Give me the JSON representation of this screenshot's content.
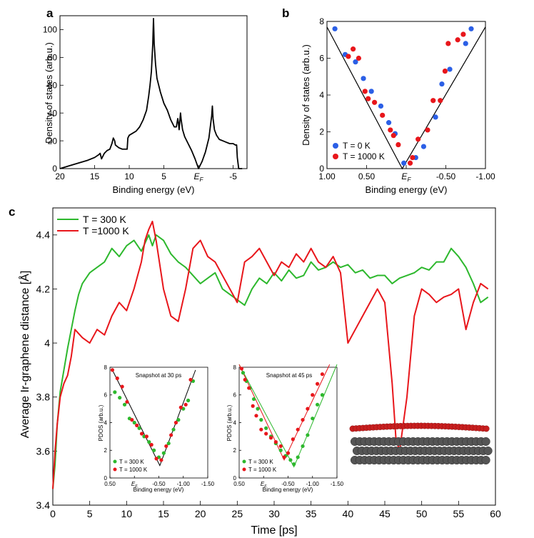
{
  "colors": {
    "green": "#2db82d",
    "red": "#e8161b",
    "blue": "#2b5fe6",
    "black": "#000000",
    "sheet_red": "#c81e1e",
    "sheet_gray": "#555555"
  },
  "chart_data": [
    {
      "id": "a",
      "panel": "a",
      "type": "line",
      "xlabel": "Binding energy (eV)",
      "ylabel": "Density of states (arb.u.)",
      "xlim": [
        20,
        -7
      ],
      "ylim": [
        0,
        110
      ],
      "xticks": [
        {
          "value": 20,
          "label": "20"
        },
        {
          "value": 15,
          "label": "15"
        },
        {
          "value": 10,
          "label": "10"
        },
        {
          "value": 5,
          "label": "5"
        },
        {
          "value": 0,
          "label": "E",
          "sub": "F"
        },
        {
          "value": -5,
          "label": "-5"
        }
      ],
      "yticks": [
        0,
        20,
        40,
        60,
        80,
        100
      ],
      "series": [
        {
          "name": "DOS",
          "color": "#000000",
          "x": [
            20,
            18,
            16,
            15,
            14.4,
            14.2,
            14,
            13.6,
            13.2,
            12.8,
            12.5,
            12.3,
            12.1,
            12,
            11.5,
            11,
            10.3,
            10.2,
            10,
            9,
            8.5,
            8,
            7.5,
            7.2,
            7,
            6.8,
            6.6,
            6.5,
            6.4,
            6.2,
            6,
            5.5,
            5,
            4.5,
            4,
            3.5,
            3.2,
            3,
            2.9,
            2.8,
            2.7,
            2.6,
            2.5,
            2.3,
            2,
            1.5,
            1,
            0.5,
            0,
            -0.5,
            -1,
            -1.5,
            -1.9,
            -2,
            -2.1,
            -2.3,
            -2.6,
            -3,
            -3.5,
            -4,
            -4.5,
            -5,
            -5.3,
            -5.5,
            -5.6,
            -5.8,
            -6,
            -6.3
          ],
          "y": [
            0,
            3,
            6,
            8,
            10,
            11,
            7,
            11,
            13,
            14,
            18,
            22,
            20,
            17,
            15,
            14,
            14,
            22,
            24,
            27,
            30,
            35,
            42,
            52,
            60,
            70,
            90,
            108,
            90,
            75,
            65,
            55,
            47,
            42,
            35,
            30,
            30,
            36,
            33,
            28,
            34,
            40,
            35,
            28,
            23,
            18,
            13,
            7,
            0,
            5,
            12,
            22,
            38,
            45,
            36,
            28,
            24,
            21,
            20,
            19,
            18,
            18,
            17,
            17,
            8,
            0,
            0,
            0
          ]
        }
      ]
    },
    {
      "id": "b",
      "panel": "b",
      "type": "scatter",
      "xlabel": "Binding energy (eV)",
      "ylabel": "Density of states (arb.u.)",
      "xlim": [
        1.0,
        -1.0
      ],
      "ylim": [
        0,
        8
      ],
      "xticks": [
        {
          "value": 1.0,
          "label": "1.00"
        },
        {
          "value": 0.5,
          "label": "0.50"
        },
        {
          "value": 0,
          "label": "E",
          "sub": "F"
        },
        {
          "value": -0.5,
          "label": "-0.50"
        },
        {
          "value": -1.0,
          "label": "-1.00"
        }
      ],
      "yticks": [
        0,
        2,
        4,
        6,
        8
      ],
      "legend": [
        {
          "label": "T = 0 K",
          "color": "#2b5fe6"
        },
        {
          "label": "T = 1000 K",
          "color": "#e8161b"
        }
      ],
      "fit_line": {
        "x": [
          1.0,
          0.05,
          -1.0
        ],
        "y": [
          7.7,
          0,
          7.7
        ]
      },
      "series": [
        {
          "name": "T = 0 K",
          "color": "#2b5fe6",
          "x": [
            0.9,
            0.77,
            0.64,
            0.54,
            0.44,
            0.32,
            0.22,
            0.14,
            0.03,
            -0.12,
            -0.22,
            -0.37,
            -0.45,
            -0.55,
            -0.75,
            -0.82
          ],
          "y": [
            7.6,
            6.2,
            5.8,
            4.9,
            4.2,
            3.4,
            2.5,
            1.9,
            0.3,
            0.6,
            1.2,
            2.8,
            4.6,
            5.4,
            6.8,
            7.6
          ]
        },
        {
          "name": "T = 1000 K",
          "color": "#e8161b",
          "x": [
            0.73,
            0.67,
            0.6,
            0.52,
            0.48,
            0.4,
            0.3,
            0.2,
            0.16,
            0.1,
            -0.05,
            -0.08,
            -0.15,
            -0.27,
            -0.34,
            -0.43,
            -0.49,
            -0.53,
            -0.65,
            -0.72
          ],
          "y": [
            6.1,
            6.5,
            6.0,
            4.2,
            3.8,
            3.6,
            2.9,
            2.1,
            1.8,
            1.3,
            0.3,
            0.6,
            1.6,
            2.1,
            3.7,
            3.7,
            5.3,
            6.8,
            7.0,
            7.3
          ]
        }
      ]
    },
    {
      "id": "c",
      "panel": "c",
      "type": "line",
      "xlabel": "Time [ps]",
      "ylabel": "Average Ir-graphene distance [Å]",
      "xlim": [
        0,
        60
      ],
      "ylim": [
        3.4,
        4.5
      ],
      "xticks": [
        0,
        5,
        10,
        15,
        20,
        25,
        30,
        35,
        40,
        45,
        50,
        55,
        60
      ],
      "yticks": [
        3.4,
        3.6,
        3.8,
        4.0,
        4.2,
        4.4
      ],
      "legend": [
        {
          "label": "T = 300 K",
          "color": "#2db82d"
        },
        {
          "label": "T =1000 K",
          "color": "#e8161b"
        }
      ],
      "series": [
        {
          "name": "T = 300 K",
          "color": "#2db82d",
          "x": [
            0,
            0.3,
            0.6,
            1,
            1.5,
            2,
            2.5,
            3,
            3.5,
            4,
            5,
            6,
            7,
            8,
            9,
            10,
            11,
            12,
            13,
            13.5,
            14,
            15,
            16,
            17,
            18,
            19,
            20,
            21,
            22,
            23,
            24,
            25,
            26,
            27,
            28,
            29,
            30,
            31,
            32,
            33,
            34,
            35,
            36,
            37,
            38,
            39,
            40,
            41,
            42,
            43,
            44,
            45,
            46,
            47,
            48,
            49,
            50,
            51,
            52,
            53,
            54,
            55,
            56,
            57,
            58,
            59
          ],
          "y": [
            3.46,
            3.55,
            3.7,
            3.82,
            3.9,
            3.98,
            4.05,
            4.12,
            4.18,
            4.22,
            4.26,
            4.28,
            4.3,
            4.35,
            4.32,
            4.36,
            4.38,
            4.34,
            4.4,
            4.36,
            4.4,
            4.38,
            4.33,
            4.3,
            4.28,
            4.25,
            4.22,
            4.24,
            4.26,
            4.2,
            4.18,
            4.16,
            4.14,
            4.2,
            4.24,
            4.22,
            4.26,
            4.23,
            4.27,
            4.24,
            4.25,
            4.3,
            4.27,
            4.28,
            4.3,
            4.28,
            4.29,
            4.26,
            4.27,
            4.24,
            4.25,
            4.25,
            4.22,
            4.24,
            4.25,
            4.26,
            4.28,
            4.27,
            4.3,
            4.3,
            4.35,
            4.32,
            4.28,
            4.22,
            4.15,
            4.17
          ]
        },
        {
          "name": "T =1000 K",
          "color": "#e8161b",
          "x": [
            0,
            0.3,
            0.6,
            1,
            1.5,
            2,
            2.5,
            3,
            4,
            5,
            6,
            7,
            8,
            9,
            10,
            11,
            12,
            12.5,
            13,
            13.5,
            14,
            15,
            15.5,
            16,
            17,
            18,
            19,
            20,
            21,
            22,
            23,
            24,
            25,
            26,
            27,
            28,
            29,
            30,
            31,
            32,
            33,
            34,
            35,
            36,
            37,
            38,
            39,
            40,
            41,
            42,
            43,
            44,
            45,
            45.5,
            46,
            46.5,
            47,
            48,
            49,
            50,
            51,
            52,
            53,
            54,
            55,
            56,
            57,
            58,
            59
          ],
          "y": [
            3.46,
            3.6,
            3.7,
            3.8,
            3.85,
            3.88,
            3.95,
            4.05,
            4.02,
            4.0,
            4.05,
            4.03,
            4.1,
            4.15,
            4.12,
            4.2,
            4.3,
            4.38,
            4.42,
            4.45,
            4.38,
            4.2,
            4.15,
            4.1,
            4.08,
            4.2,
            4.35,
            4.38,
            4.32,
            4.3,
            4.25,
            4.2,
            4.15,
            4.3,
            4.32,
            4.35,
            4.3,
            4.25,
            4.3,
            4.28,
            4.33,
            4.3,
            4.35,
            4.3,
            4.28,
            4.32,
            4.26,
            4.0,
            4.05,
            4.1,
            4.15,
            4.2,
            4.15,
            4.0,
            3.85,
            3.65,
            3.6,
            3.8,
            4.1,
            4.2,
            4.18,
            4.15,
            4.17,
            4.18,
            4.2,
            4.05,
            4.15,
            4.22,
            4.2
          ]
        }
      ]
    },
    {
      "id": "inset1",
      "type": "scatter",
      "title": "Snapshot at 30 ps",
      "xlabel": "Binding energy (eV)",
      "ylabel": "PDOS (arb.u.)",
      "xlim": [
        0.5,
        -1.5
      ],
      "ylim": [
        0,
        8
      ],
      "xticks": [
        {
          "value": 0.5,
          "label": "0.50"
        },
        {
          "value": 0,
          "label": "E",
          "sub": "F"
        },
        {
          "value": -0.5,
          "label": "-0.50"
        },
        {
          "value": -1.0,
          "label": "-1.00"
        },
        {
          "value": -1.5,
          "label": "-1.50"
        }
      ],
      "yticks": [
        0,
        2,
        4,
        6,
        8
      ],
      "legend": [
        {
          "label": "T = 300 K",
          "color": "#2db82d"
        },
        {
          "label": "T = 1000 K",
          "color": "#e8161b"
        }
      ],
      "fit_lines": [
        {
          "color": "#000000",
          "x": [
            0.45,
            -0.52,
            -1.25
          ],
          "y": [
            7.8,
            0.9,
            7.8
          ]
        }
      ],
      "series": [
        {
          "name": "T = 300 K",
          "color": "#2db82d",
          "x": [
            0.4,
            0.3,
            0.2,
            0.1,
            0.0,
            -0.1,
            -0.2,
            -0.3,
            -0.4,
            -0.5,
            -0.6,
            -0.7,
            -0.8,
            -0.9,
            -1.0,
            -1.1,
            -1.2
          ],
          "y": [
            6.2,
            5.8,
            5.3,
            4.3,
            4.0,
            3.6,
            3.0,
            2.6,
            2.0,
            1.5,
            1.8,
            2.5,
            3.5,
            4.2,
            5.0,
            5.6,
            7.0
          ]
        },
        {
          "name": "T = 1000 K",
          "color": "#e8161b",
          "x": [
            0.45,
            0.35,
            0.25,
            0.15,
            0.05,
            -0.05,
            -0.15,
            -0.25,
            -0.35,
            -0.45,
            -0.55,
            -0.65,
            -0.75,
            -0.85,
            -0.95,
            -1.05,
            -1.15
          ],
          "y": [
            7.8,
            7.2,
            6.6,
            5.5,
            4.2,
            3.8,
            3.2,
            3.0,
            2.4,
            1.4,
            1.3,
            2.3,
            3.1,
            4.0,
            5.1,
            5.3,
            7.1
          ]
        }
      ]
    },
    {
      "id": "inset2",
      "type": "scatter",
      "title": "Snapshot at 45 ps",
      "xlabel": "Binding energy (eV)",
      "ylabel": "PDOS (arb.u.)",
      "xlim": [
        0.5,
        -1.5
      ],
      "ylim": [
        0,
        8
      ],
      "xticks": [
        {
          "value": 0.5,
          "label": "0.50"
        },
        {
          "value": 0,
          "label": "E",
          "sub": "F"
        },
        {
          "value": -0.5,
          "label": "-0.50"
        },
        {
          "value": -1.0,
          "label": "-1.00"
        },
        {
          "value": -1.5,
          "label": "-1.50"
        }
      ],
      "yticks": [
        0,
        2,
        4,
        6,
        8
      ],
      "legend": [
        {
          "label": "T = 300 K",
          "color": "#2db82d"
        },
        {
          "label": "T = 1000 K",
          "color": "#e8161b"
        }
      ],
      "fit_lines": [
        {
          "color": "#2db82d",
          "x": [
            0.5,
            -0.62,
            -1.5
          ],
          "y": [
            8.2,
            0.8,
            8.2
          ]
        },
        {
          "color": "#e8161b",
          "x": [
            0.5,
            -0.42,
            -1.35
          ],
          "y": [
            8.2,
            1.3,
            8.2
          ]
        }
      ],
      "series": [
        {
          "name": "T = 300 K",
          "color": "#2db82d",
          "x": [
            0.42,
            0.35,
            0.28,
            0.2,
            0.12,
            0.05,
            -0.05,
            -0.15,
            -0.25,
            -0.35,
            -0.45,
            -0.55,
            -0.62,
            -0.7,
            -0.8,
            -0.9,
            -1.0,
            -1.1,
            -1.2
          ],
          "y": [
            7.6,
            7.0,
            6.5,
            5.7,
            5.0,
            4.2,
            3.6,
            3.0,
            2.5,
            2.0,
            1.6,
            1.3,
            1.0,
            1.5,
            2.3,
            3.1,
            4.3,
            5.3,
            6.0
          ]
        },
        {
          "name": "T = 1000 K",
          "color": "#e8161b",
          "x": [
            0.45,
            0.38,
            0.3,
            0.22,
            0.15,
            0.05,
            -0.05,
            -0.15,
            -0.25,
            -0.35,
            -0.42,
            -0.5,
            -0.6,
            -0.7,
            -0.8,
            -0.9,
            -1.0,
            -1.1,
            -1.2
          ],
          "y": [
            7.9,
            7.1,
            6.5,
            5.2,
            4.5,
            3.5,
            3.2,
            2.9,
            2.6,
            2.3,
            1.5,
            1.8,
            2.8,
            3.5,
            4.2,
            5.0,
            6.0,
            6.8,
            7.5
          ]
        }
      ]
    }
  ]
}
